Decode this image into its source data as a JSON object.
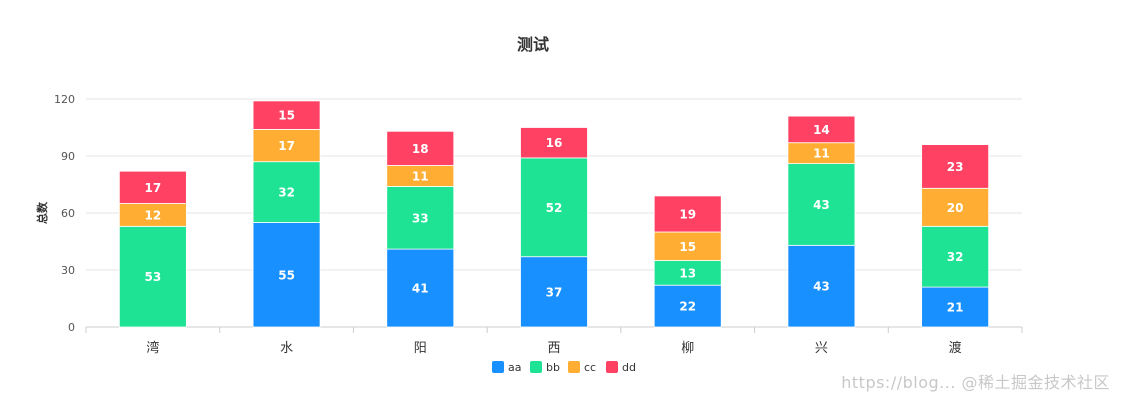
{
  "chart_data": {
    "type": "bar",
    "stacked": true,
    "title": "测试",
    "ylabel": "总数",
    "xlabel": "",
    "ylim": [
      0,
      120
    ],
    "yticks": [
      0,
      30,
      60,
      90,
      120
    ],
    "grid": true,
    "legend_position": "bottom",
    "categories": [
      "湾",
      "水",
      "阳",
      "西",
      "柳",
      "兴",
      "渡"
    ],
    "series": [
      {
        "name": "aa",
        "color": "#1890ff",
        "values": [
          0,
          55,
          41,
          37,
          22,
          43,
          21
        ]
      },
      {
        "name": "bb",
        "color": "#1ee395",
        "values": [
          53,
          32,
          33,
          52,
          13,
          43,
          32
        ]
      },
      {
        "name": "cc",
        "color": "#ffae33",
        "values": [
          12,
          17,
          11,
          0,
          15,
          11,
          20
        ]
      },
      {
        "name": "dd",
        "color": "#ff4264",
        "values": [
          17,
          15,
          18,
          16,
          19,
          14,
          23
        ]
      }
    ]
  },
  "watermark": "https://blog... @稀土掘金技术社区"
}
